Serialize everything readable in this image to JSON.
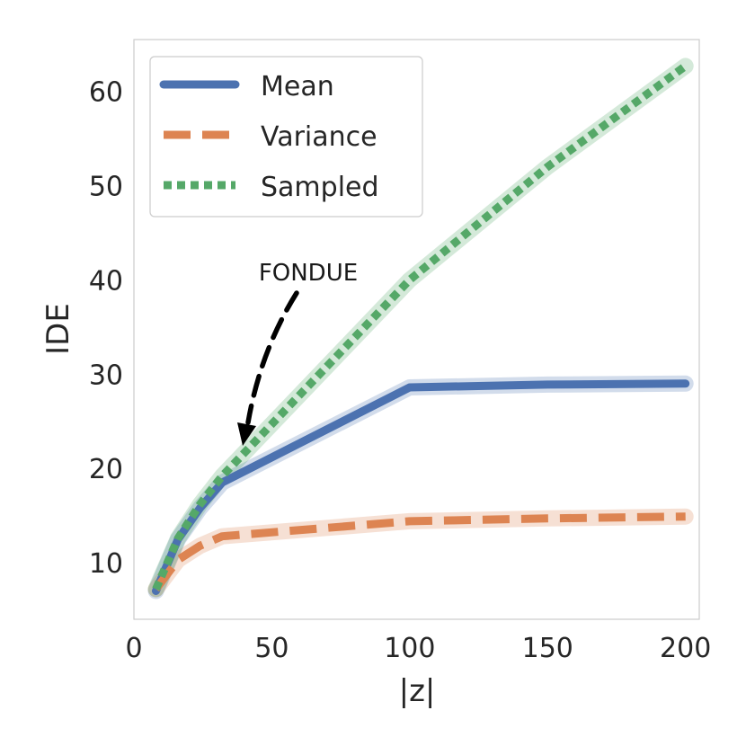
{
  "chart_data": {
    "type": "line",
    "xlabel": "|z|",
    "ylabel": "IDE",
    "xlim": [
      0,
      205
    ],
    "ylim": [
      4,
      65.5
    ],
    "xticks": [
      0,
      50,
      100,
      150,
      200
    ],
    "yticks": [
      10,
      20,
      30,
      40,
      50,
      60
    ],
    "grid": false,
    "legend_position": "top-left",
    "annotation": {
      "text": "FONDUE",
      "points_to": {
        "x": 38,
        "y": 22
      }
    },
    "series": [
      {
        "name": "Mean",
        "color": "#4c72b0",
        "style": "solid",
        "x": [
          8,
          16,
          24,
          32,
          100,
          150,
          200
        ],
        "y": [
          7.0,
          12.5,
          15.8,
          18.5,
          28.6,
          28.9,
          29.0
        ]
      },
      {
        "name": "Variance",
        "color": "#dd8452",
        "style": "dashed",
        "x": [
          8,
          16,
          24,
          32,
          100,
          150,
          200
        ],
        "y": [
          7.2,
          10.3,
          11.8,
          12.8,
          14.4,
          14.7,
          14.9
        ]
      },
      {
        "name": "Sampled",
        "color": "#55a868",
        "style": "dotted",
        "x": [
          8,
          16,
          24,
          32,
          100,
          150,
          200
        ],
        "y": [
          7.2,
          12.6,
          16.2,
          19.2,
          40.0,
          52.0,
          62.7
        ]
      }
    ]
  }
}
